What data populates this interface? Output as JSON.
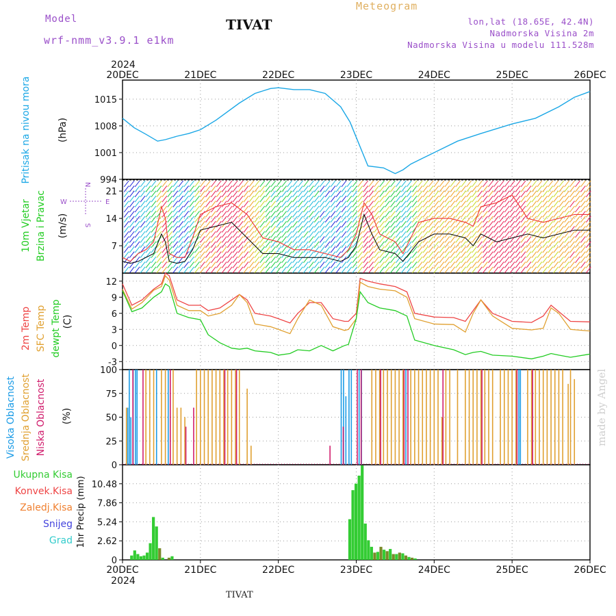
{
  "header": {
    "model_label": "Model",
    "model_value": "wrf-nmm_v3.9.1  e1km",
    "station": "TIVAT",
    "product": "Meteogram",
    "coords": "lon,lat (18.65E, 42.4N)",
    "elevation": "Nadmorska Visina 2m",
    "model_elevation": "Nadmorska Visina u modelu 111.528m"
  },
  "footer": {
    "station": "TIVAT"
  },
  "watermark": "made by Angel",
  "time_axis": {
    "year_label": "2024",
    "ticks": [
      "20DEC",
      "21DEC",
      "22DEC",
      "23DEC",
      "24DEC",
      "25DEC",
      "26DEC"
    ]
  },
  "panel_labels": {
    "pressure": [
      "Pritisak na nivou mora",
      "(hPa)"
    ],
    "wind": [
      "10m Vjetar",
      "Brzina i Pravac",
      "(m/s)"
    ],
    "wind_compass": {
      "north": "N",
      "south": "S",
      "east": "E",
      "west": "W"
    },
    "temp": [
      "2m Temp",
      "SFC Temp",
      "dewpt Temp",
      "(C)"
    ],
    "cloud": [
      "Visoka Oblacnost",
      "Srednja Oblacnost",
      "Niska Oblacnost",
      "(%)"
    ],
    "precip_legend": [
      "Ukupna Kisa",
      "Konvek.Kisa",
      "Zaledj.Kisa",
      "Snijeg",
      "Grad"
    ],
    "precip_unit": "1hr Precip (mm)"
  },
  "colors": {
    "pressure": "#1aa7e6",
    "temp2m": "#ee4444",
    "sfctemp": "#e0a030",
    "dewpt": "#22cc22",
    "cloud_high": "#1a9be6",
    "cloud_mid": "#e0a030",
    "cloud_low": "#d01c6c",
    "precip_total": "#33cc33",
    "precip_conv": "#ee4444",
    "precip_frz": "#f08030",
    "precip_snow": "#4444dd",
    "precip_hail": "#33cccc"
  },
  "chart_data": [
    {
      "type": "line",
      "name": "pressure",
      "ylabel": "Pritisak na nivou mora (hPa)",
      "ylim": [
        994,
        1020
      ],
      "yticks": [
        994,
        1001,
        1008,
        1015
      ],
      "x_days": [
        0,
        0.15,
        0.3,
        0.45,
        0.55,
        0.7,
        0.85,
        1.0,
        1.2,
        1.5,
        1.7,
        1.9,
        2.0,
        2.2,
        2.4,
        2.6,
        2.8,
        2.92,
        3.0,
        3.15,
        3.35,
        3.5,
        3.6,
        3.7,
        3.85,
        4.0,
        4.3,
        4.6,
        5.0,
        5.3,
        5.6,
        5.8,
        6.0
      ],
      "series": [
        {
          "values": [
            1010,
            1007.5,
            1005.8,
            1004,
            1004.4,
            1005.3,
            1006,
            1007,
            1009.5,
            1014,
            1016.5,
            1017.8,
            1018,
            1017.5,
            1017.5,
            1016.5,
            1013,
            1009,
            1005,
            997.5,
            997,
            995.5,
            996.5,
            998,
            999.5,
            1001,
            1004,
            1006,
            1008.5,
            1010,
            1013,
            1015.5,
            1017
          ]
        }
      ]
    },
    {
      "type": "line",
      "name": "wind",
      "ylabel": "10m Vjetar Brzina i Pravac (m/s)",
      "ylim": [
        0,
        24
      ],
      "yticks": [
        7,
        14,
        21
      ],
      "x_days": [
        0,
        0.1,
        0.2,
        0.3,
        0.4,
        0.5,
        0.55,
        0.6,
        0.7,
        0.8,
        0.9,
        1.0,
        1.2,
        1.4,
        1.6,
        1.8,
        2.0,
        2.2,
        2.4,
        2.6,
        2.8,
        2.9,
        3.0,
        3.1,
        3.2,
        3.3,
        3.5,
        3.6,
        3.8,
        4.0,
        4.2,
        4.4,
        4.5,
        4.6,
        4.8,
        5.0,
        5.2,
        5.4,
        5.6,
        5.8,
        6.0
      ],
      "series": [
        {
          "values": [
            3,
            2.5,
            3,
            4,
            5,
            10,
            8,
            3,
            2.5,
            3,
            6,
            11,
            12,
            13,
            9,
            5,
            5,
            4,
            4,
            4,
            3,
            4,
            7,
            15,
            10,
            6,
            5,
            3,
            8,
            10,
            10,
            9,
            7,
            10,
            8,
            9,
            10,
            9,
            10,
            11,
            11
          ]
        },
        {
          "values": [
            4,
            3,
            5,
            6,
            8,
            17,
            14,
            5,
            4,
            4,
            9,
            15,
            17,
            18,
            15,
            9,
            8,
            6,
            6,
            5,
            4,
            6,
            10,
            18,
            15,
            10,
            8,
            5,
            13,
            14,
            14,
            13,
            12,
            17,
            18,
            20,
            14,
            13,
            14,
            15,
            15
          ]
        }
      ]
    },
    {
      "type": "line",
      "name": "temperature",
      "ylabel": "(C)",
      "ylim": [
        -4.5,
        13.5
      ],
      "yticks": [
        -3,
        0,
        3,
        6,
        9,
        12
      ],
      "x_days": [
        0,
        0.12,
        0.25,
        0.4,
        0.5,
        0.55,
        0.6,
        0.7,
        0.85,
        1.0,
        1.1,
        1.25,
        1.4,
        1.5,
        1.6,
        1.7,
        1.9,
        2.0,
        2.15,
        2.25,
        2.4,
        2.55,
        2.7,
        2.85,
        2.9,
        3.0,
        3.05,
        3.15,
        3.3,
        3.5,
        3.65,
        3.75,
        4.0,
        4.25,
        4.4,
        4.5,
        4.6,
        4.75,
        5.0,
        5.25,
        5.4,
        5.5,
        5.6,
        5.75,
        6.0
      ],
      "series": [
        {
          "values": [
            11.5,
            7.5,
            8.5,
            10.5,
            11.5,
            13.5,
            13,
            8.5,
            7.5,
            7.5,
            6.5,
            7,
            8.5,
            9.5,
            8.5,
            6,
            5.5,
            5,
            4.2,
            6,
            8,
            8,
            5,
            4.5,
            4.5,
            6,
            12.5,
            12,
            11.5,
            11,
            10,
            6,
            5.3,
            5.2,
            4.5,
            6.5,
            8.5,
            6,
            4.5,
            4.3,
            5.5,
            7.5,
            6.3,
            4.5,
            4.4
          ]
        },
        {
          "values": [
            10.5,
            6.8,
            8.0,
            10.3,
            11,
            13,
            12.2,
            7.5,
            6.5,
            6.5,
            5.5,
            6,
            7.5,
            9.5,
            8,
            4,
            3.5,
            3,
            2.2,
            5,
            8.5,
            7.5,
            3.5,
            2.8,
            3,
            5,
            11.8,
            11,
            10.5,
            10.2,
            9,
            5,
            4,
            3.9,
            2.5,
            6,
            8.5,
            5.5,
            3.2,
            2.9,
            3.2,
            7,
            6,
            3,
            2.7
          ]
        },
        {
          "values": [
            10.2,
            6.3,
            7,
            9,
            10,
            11.5,
            11,
            6,
            5.2,
            4.8,
            2,
            0.5,
            -0.5,
            -0.7,
            -0.5,
            -1,
            -1.3,
            -1.8,
            -1.5,
            -0.8,
            -1,
            0,
            -1,
            0,
            0.2,
            5,
            10,
            8,
            7,
            6.5,
            5.5,
            1,
            0,
            -0.8,
            -1.7,
            -1.3,
            -1.1,
            -1.8,
            -2,
            -2.5,
            -2,
            -1.5,
            -1.8,
            -2.2,
            -1.6
          ]
        }
      ]
    },
    {
      "type": "bar",
      "name": "cloud_cover",
      "ylabel": "(%)",
      "ylim": [
        0,
        100
      ],
      "yticks": [
        0,
        25,
        50,
        75,
        100
      ],
      "series": [
        {
          "name": "Visoka Oblacnost",
          "x_days": [
            0.08,
            0.1,
            0.12,
            0.15,
            0.18,
            0.2,
            0.45,
            0.6,
            2.82,
            2.85,
            2.88,
            2.92,
            2.95,
            3.05,
            3.08,
            3.62,
            3.65,
            5.1,
            5.12
          ],
          "values": [
            60,
            100,
            50,
            100,
            100,
            100,
            100,
            100,
            100,
            100,
            72,
            100,
            100,
            100,
            100,
            100,
            100,
            100,
            100
          ]
        },
        {
          "name": "Srednja Oblacnost",
          "x_days": [
            0.05,
            0.3,
            0.35,
            0.4,
            0.5,
            0.55,
            0.65,
            0.7,
            0.75,
            0.8,
            0.95,
            1.0,
            1.05,
            1.1,
            1.15,
            1.2,
            1.25,
            1.3,
            1.35,
            1.4,
            1.45,
            1.5,
            1.6,
            1.65,
            3.2,
            3.25,
            3.3,
            3.35,
            3.4,
            3.45,
            3.5,
            3.55,
            3.6,
            3.7,
            3.75,
            3.8,
            3.85,
            3.9,
            3.95,
            4.0,
            4.05,
            4.1,
            4.15,
            4.2,
            4.3,
            4.4,
            4.45,
            4.5,
            4.55,
            4.6,
            4.65,
            4.7,
            4.75,
            4.85,
            4.9,
            4.95,
            5.0,
            5.05,
            5.2,
            5.25,
            5.3,
            5.35,
            5.4,
            5.45,
            5.5,
            5.55,
            5.6,
            5.65,
            5.72,
            5.75,
            5.8
          ],
          "values": [
            60,
            100,
            100,
            100,
            100,
            100,
            100,
            60,
            60,
            50,
            100,
            100,
            100,
            100,
            100,
            100,
            100,
            100,
            100,
            100,
            100,
            100,
            80,
            20,
            100,
            100,
            100,
            100,
            100,
            100,
            100,
            100,
            100,
            100,
            100,
            100,
            100,
            100,
            100,
            100,
            100,
            50,
            100,
            100,
            100,
            100,
            100,
            100,
            100,
            100,
            100,
            100,
            100,
            100,
            100,
            100,
            100,
            100,
            100,
            100,
            100,
            100,
            100,
            100,
            100,
            100,
            100,
            100,
            85,
            100,
            90
          ]
        },
        {
          "name": "Niska Oblacnost",
          "x_days": [
            0.12,
            0.25,
            0.6,
            0.8,
            0.9,
            1.3,
            1.45,
            2.65,
            2.82,
            3.0,
            3.05,
            3.3,
            3.6,
            3.65,
            4.1,
            4.6,
            5.05,
            5.25
          ],
          "values": [
            100,
            100,
            100,
            40,
            60,
            100,
            100,
            20,
            40,
            100,
            100,
            100,
            100,
            100,
            100,
            100,
            100,
            100
          ]
        }
      ]
    },
    {
      "type": "bar",
      "name": "precipitation",
      "ylabel": "1hr Precip (mm)",
      "ylim": [
        0,
        13.1
      ],
      "yticks": [
        0,
        2.62,
        5.24,
        7.86,
        10.48
      ],
      "x_days": [
        0.12,
        0.16,
        0.2,
        0.24,
        0.28,
        0.32,
        0.36,
        0.4,
        0.44,
        0.48,
        0.52,
        0.6,
        0.64,
        2.92,
        2.96,
        3.0,
        3.04,
        3.08,
        3.12,
        3.16,
        3.2,
        3.24,
        3.28,
        3.32,
        3.36,
        3.4,
        3.44,
        3.48,
        3.52,
        3.56,
        3.6,
        3.64,
        3.68,
        3.72,
        3.76
      ],
      "series": [
        {
          "name": "Ukupna Kisa",
          "values": [
            0.6,
            1.3,
            0.8,
            0.5,
            0.6,
            1.0,
            2.3,
            5.9,
            4.6,
            1.6,
            0.3,
            0.3,
            0.5,
            5.6,
            9.6,
            10.5,
            11.6,
            13.0,
            5.0,
            2.7,
            1.8,
            1.0,
            1.1,
            1.8,
            1.4,
            1.2,
            1.5,
            0.8,
            0.8,
            1.0,
            0.9,
            0.6,
            0.4,
            0.3,
            0.2
          ]
        },
        {
          "name": "Konvek.Kisa",
          "values": [
            0,
            0,
            0,
            0,
            0,
            0,
            0,
            0,
            0,
            0,
            0,
            0,
            0,
            0,
            0,
            0,
            0,
            0,
            0,
            0,
            0,
            0,
            0,
            0,
            0,
            0,
            0,
            0,
            0,
            0,
            0,
            0,
            0,
            0,
            0
          ]
        },
        {
          "name": "Zaledj.Kisa",
          "values": [
            0,
            0,
            0,
            0,
            0,
            0,
            0,
            0,
            0,
            0,
            0,
            0,
            0,
            0,
            0,
            0,
            0,
            0,
            0,
            0,
            0,
            0,
            0,
            0,
            0,
            0,
            0,
            0,
            0,
            0,
            0,
            0,
            0,
            0,
            0
          ]
        },
        {
          "name": "Snijeg",
          "values": [
            0,
            0,
            0,
            0,
            0,
            0,
            0,
            0,
            0,
            0,
            0,
            0,
            0,
            0,
            0,
            0,
            0,
            0,
            0,
            0,
            0,
            0,
            0,
            0,
            0,
            0,
            0,
            0,
            0,
            0,
            0,
            0,
            0,
            0,
            0
          ]
        },
        {
          "name": "Grad",
          "values": [
            0,
            0,
            0,
            0,
            0,
            0,
            0,
            0,
            0,
            0,
            0,
            0,
            0,
            0,
            0,
            0,
            0,
            0,
            0,
            0,
            0,
            0,
            0,
            0,
            0,
            0,
            0,
            0,
            0,
            0,
            0,
            0,
            0,
            0,
            0
          ]
        }
      ]
    }
  ]
}
